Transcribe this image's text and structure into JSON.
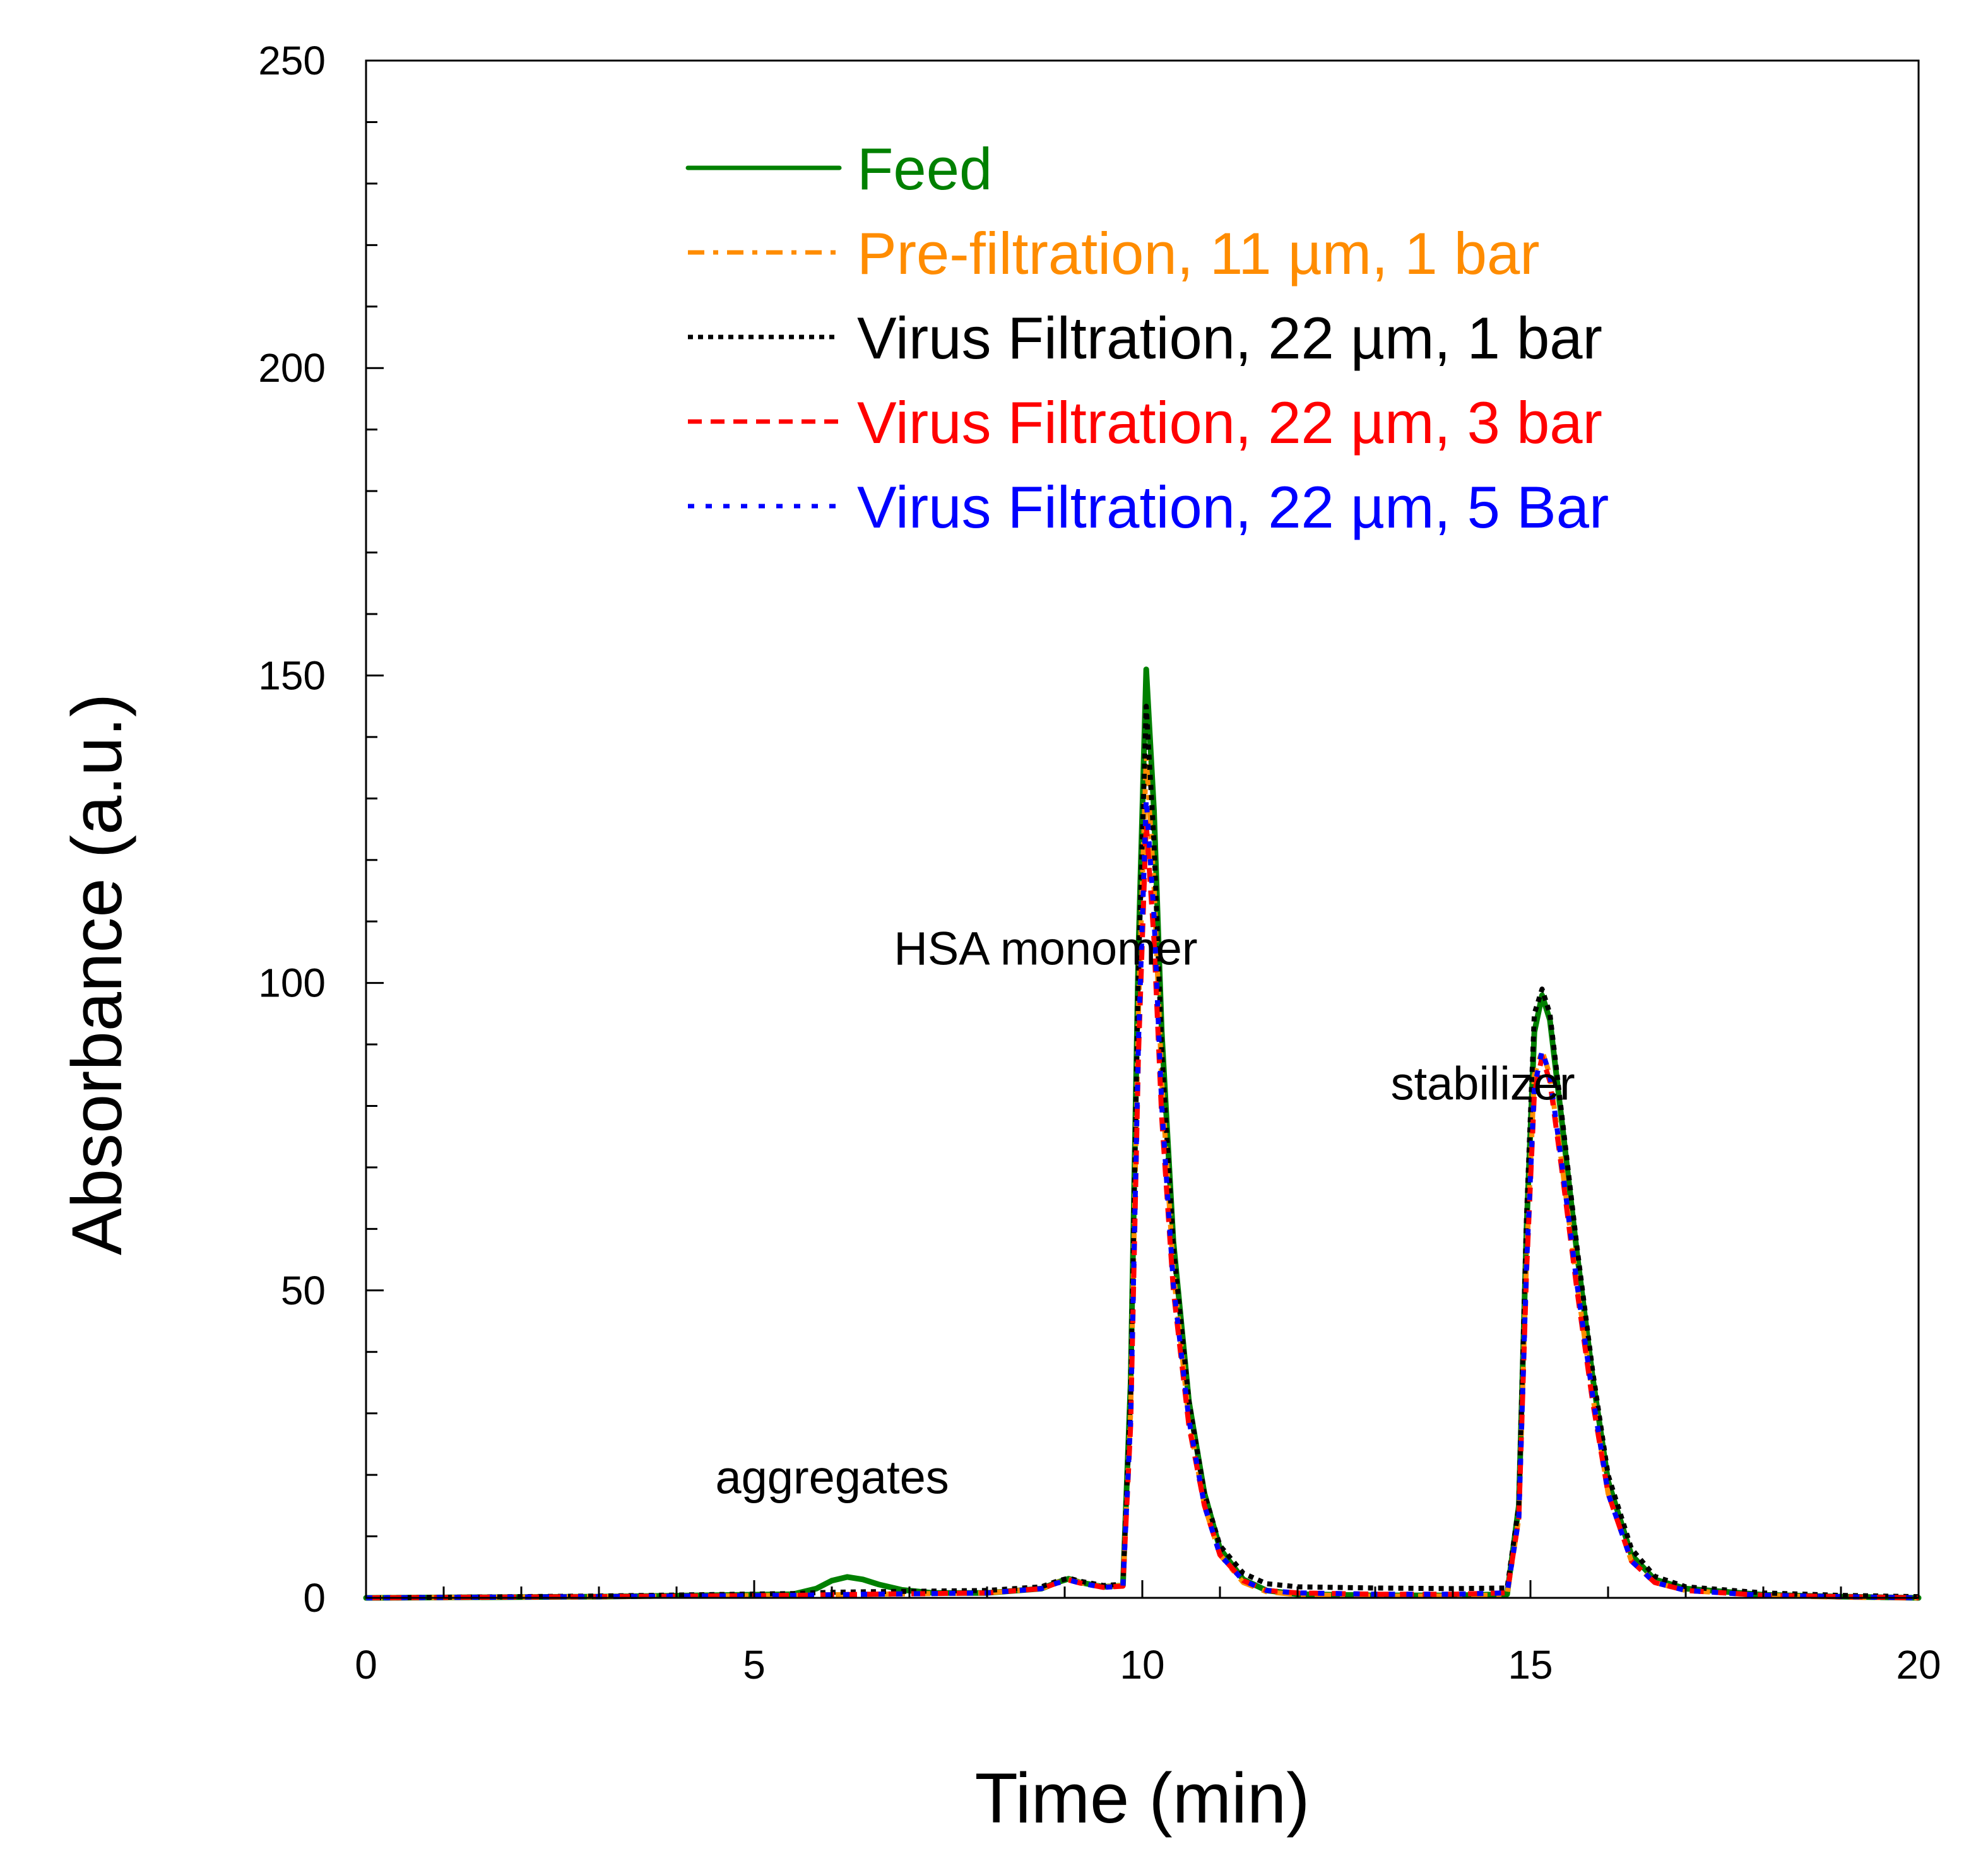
{
  "chart_data": {
    "type": "line",
    "title": "",
    "xlabel": "Time (min)",
    "ylabel": "Absorbance (a.u.)",
    "xlim": [
      0,
      20
    ],
    "ylim": [
      0,
      250
    ],
    "x_major_ticks": [
      0,
      5,
      10,
      15,
      20
    ],
    "x_tick_labels": [
      "0",
      "5",
      "10",
      "15",
      "20"
    ],
    "x_minor_step": 1,
    "y_major_ticks": [
      0,
      50,
      100,
      150,
      200,
      250
    ],
    "y_tick_labels": [
      "0",
      "50",
      "100",
      "150",
      "200",
      "250"
    ],
    "y_minor_step": 10,
    "grid": false,
    "legend_position": "top-right",
    "series": [
      {
        "name": "Feed",
        "color": "#008000",
        "dash": "solid",
        "x": [
          0,
          3,
          5.5,
          5.8,
          6.0,
          6.2,
          6.4,
          6.6,
          6.9,
          7.3,
          8.0,
          8.7,
          8.9,
          9.05,
          9.2,
          9.5,
          9.75,
          9.85,
          9.95,
          10.05,
          10.15,
          10.25,
          10.4,
          10.6,
          10.8,
          11.0,
          11.3,
          11.6,
          12.0,
          13.0,
          14.0,
          14.7,
          14.85,
          14.95,
          15.05,
          15.15,
          15.25,
          15.4,
          15.6,
          15.8,
          16.0,
          16.3,
          16.6,
          17.0,
          18.0,
          19.0,
          20.0
        ],
        "y": [
          0,
          0.2,
          0.6,
          1.5,
          2.8,
          3.4,
          3.0,
          2.2,
          1.3,
          0.8,
          0.8,
          1.5,
          2.5,
          3.1,
          2.5,
          1.8,
          2.0,
          35,
          105,
          151,
          128,
          92,
          58,
          32,
          17,
          8,
          3,
          1.2,
          0.6,
          0.4,
          0.4,
          0.6,
          15,
          60,
          92,
          98,
          94,
          78,
          56,
          36,
          19,
          7,
          3,
          1.5,
          0.5,
          0.2,
          0
        ]
      },
      {
        "name": "Pre-filtration, 11 µm, 1 bar",
        "color": "#ff8c00",
        "dash": "dashdot",
        "x": [
          0,
          3,
          5.5,
          6.0,
          6.5,
          7.3,
          8.0,
          8.7,
          8.9,
          9.05,
          9.2,
          9.5,
          9.75,
          9.85,
          9.95,
          10.05,
          10.15,
          10.25,
          10.4,
          10.6,
          10.8,
          11.0,
          11.3,
          11.6,
          12.0,
          13.0,
          14.0,
          14.7,
          14.85,
          14.95,
          15.05,
          15.15,
          15.25,
          15.4,
          15.6,
          15.8,
          16.0,
          16.3,
          16.6,
          17.0,
          18.0,
          19.0,
          20.0
        ],
        "y": [
          0,
          0.2,
          0.4,
          0.5,
          0.6,
          0.7,
          0.8,
          1.5,
          2.5,
          3.0,
          2.5,
          1.8,
          2.0,
          30,
          95,
          137,
          116,
          84,
          53,
          29,
          15,
          7,
          2.5,
          1.0,
          0.5,
          0.3,
          0.3,
          0.5,
          13,
          55,
          85,
          89,
          85,
          71,
          51,
          33,
          17,
          6,
          2.5,
          1.2,
          0.4,
          0.1,
          0
        ]
      },
      {
        "name": "Virus Filtration, 22 µm, 1 bar",
        "color": "#000000",
        "dash": "dotted",
        "x": [
          0,
          3,
          5.5,
          6.0,
          6.5,
          7.3,
          8.0,
          8.7,
          8.9,
          9.05,
          9.2,
          9.5,
          9.75,
          9.85,
          9.95,
          10.05,
          10.15,
          10.25,
          10.4,
          10.6,
          10.8,
          11.0,
          11.3,
          11.6,
          12.0,
          13.0,
          14.0,
          14.7,
          14.85,
          14.95,
          15.05,
          15.15,
          15.25,
          15.4,
          15.6,
          15.8,
          16.0,
          16.3,
          16.6,
          17.0,
          18.0,
          19.0,
          20.0
        ],
        "y": [
          0,
          0.3,
          0.7,
          0.9,
          1.0,
          1.1,
          1.2,
          1.8,
          2.7,
          3.2,
          2.7,
          2.0,
          2.2,
          33,
          102,
          145,
          123,
          89,
          57,
          32,
          17,
          8.5,
          4,
          2.3,
          1.8,
          1.6,
          1.5,
          1.6,
          15,
          62,
          95,
          99,
          95,
          79,
          57,
          37,
          20,
          8,
          3.5,
          1.8,
          0.8,
          0.4,
          0.2
        ]
      },
      {
        "name": "Virus Filtration, 22 µm, 3 bar",
        "color": "#ff0000",
        "dash": "dashed",
        "x": [
          0,
          3,
          5.5,
          6.0,
          6.5,
          7.3,
          8.0,
          8.7,
          8.9,
          9.05,
          9.2,
          9.5,
          9.75,
          9.85,
          9.95,
          10.05,
          10.15,
          10.25,
          10.4,
          10.6,
          10.8,
          11.0,
          11.3,
          11.6,
          12.0,
          13.0,
          14.0,
          14.7,
          14.85,
          14.95,
          15.05,
          15.15,
          15.25,
          15.4,
          15.6,
          15.8,
          16.0,
          16.3,
          16.6,
          17.0,
          18.0,
          19.0,
          20.0
        ],
        "y": [
          0,
          0.2,
          0.4,
          0.5,
          0.6,
          0.7,
          0.8,
          1.5,
          2.4,
          2.9,
          2.4,
          1.7,
          1.9,
          28,
          88,
          126,
          107,
          78,
          50,
          28,
          15,
          7,
          2.8,
          1.2,
          0.8,
          0.6,
          0.6,
          0.8,
          13,
          53,
          82,
          88,
          84,
          70,
          50,
          32,
          17,
          6,
          2.5,
          1.2,
          0.4,
          0.2,
          0
        ]
      },
      {
        "name": "Virus Filtration, 22 µm, 5 Bar",
        "color": "#0000ff",
        "dash": "sparse-dotted",
        "x": [
          0,
          3,
          5.5,
          6.0,
          6.5,
          7.3,
          8.0,
          8.7,
          8.9,
          9.05,
          9.2,
          9.5,
          9.75,
          9.85,
          9.95,
          10.05,
          10.15,
          10.25,
          10.4,
          10.6,
          10.8,
          11.0,
          11.3,
          11.6,
          12.0,
          13.0,
          14.0,
          14.7,
          14.85,
          14.95,
          15.05,
          15.15,
          15.25,
          15.4,
          15.6,
          15.8,
          16.0,
          16.3,
          16.6,
          17.0,
          18.0,
          19.0,
          20.0
        ],
        "y": [
          0,
          0.2,
          0.4,
          0.5,
          0.6,
          0.7,
          0.8,
          1.5,
          2.4,
          2.9,
          2.4,
          1.7,
          1.9,
          29,
          90,
          130,
          111,
          80,
          51,
          29,
          15,
          7,
          2.8,
          1.2,
          0.8,
          0.6,
          0.6,
          0.8,
          13,
          54,
          83,
          89,
          85,
          71,
          51,
          33,
          17,
          6,
          2.5,
          1.2,
          0.4,
          0.2,
          0
        ]
      }
    ],
    "annotations": [
      {
        "text": "aggregates",
        "x": 4.5,
        "y": 17
      },
      {
        "text": "HSA monomer",
        "x": 6.8,
        "y": 103
      },
      {
        "text": "stabilizer",
        "x": 13.2,
        "y": 81
      }
    ]
  }
}
